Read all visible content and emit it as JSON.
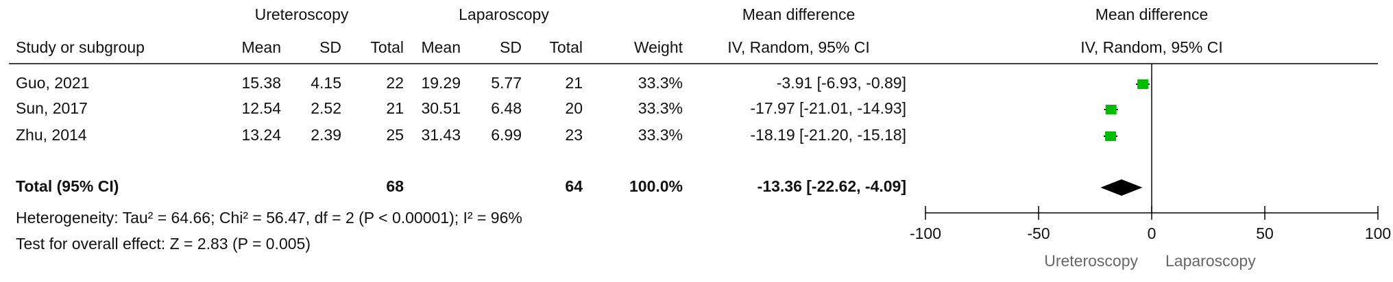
{
  "chart_data": {
    "type": "forest",
    "groups": [
      "Ureteroscopy",
      "Laparoscopy",
      "Mean difference"
    ],
    "plot_title": "Mean difference",
    "plot_subtitle": "IV, Random, 95% CI",
    "columns": [
      "Study or subgroup",
      "Mean",
      "SD",
      "Total",
      "Mean",
      "SD",
      "Total",
      "Weight",
      "IV, Random, 95% CI"
    ],
    "categories": [
      "Guo, 2021",
      "Sun, 2017",
      "Zhu, 2014"
    ],
    "rows": [
      [
        "15.38",
        "4.15",
        "22",
        "19.29",
        "5.77",
        "21",
        "33.3%"
      ],
      [
        "12.54",
        "2.52",
        "21",
        "30.51",
        "6.48",
        "20",
        "33.3%"
      ],
      [
        "13.24",
        "2.39",
        "25",
        "31.43",
        "6.99",
        "23",
        "33.3%"
      ]
    ],
    "values": [
      -3.91,
      -17.97,
      -18.19
    ],
    "ci_lower": [
      -6.93,
      -21.01,
      -21.2
    ],
    "ci_upper": [
      -0.89,
      -14.93,
      -15.18
    ],
    "value_labels": [
      "-3.91 [-6.93, -0.89]",
      "-17.97 [-21.01, -14.93]",
      "-18.19 [-21.20, -15.18]"
    ],
    "total": {
      "label": "Total (95% CI)",
      "cells": [
        "",
        "",
        "68",
        "",
        "",
        "64",
        "100.0%"
      ],
      "value": -13.36,
      "ci_lower": -22.62,
      "ci_upper": -4.09,
      "value_label": "-13.36 [-22.62, -4.09]"
    },
    "heterogeneity": "Heterogeneity: Tau² = 64.66; Chi² = 56.47, df = 2 (P < 0.00001); I² = 96%",
    "overall_effect": "Test for overall effect: Z = 2.83 (P = 0.005)",
    "xlim": [
      -100,
      100
    ],
    "xticks": [
      -100,
      -50,
      0,
      50,
      100
    ],
    "favours": [
      "Ureteroscopy",
      "Laparoscopy"
    ],
    "color": "#00bb00",
    "total_color": "#000000"
  }
}
